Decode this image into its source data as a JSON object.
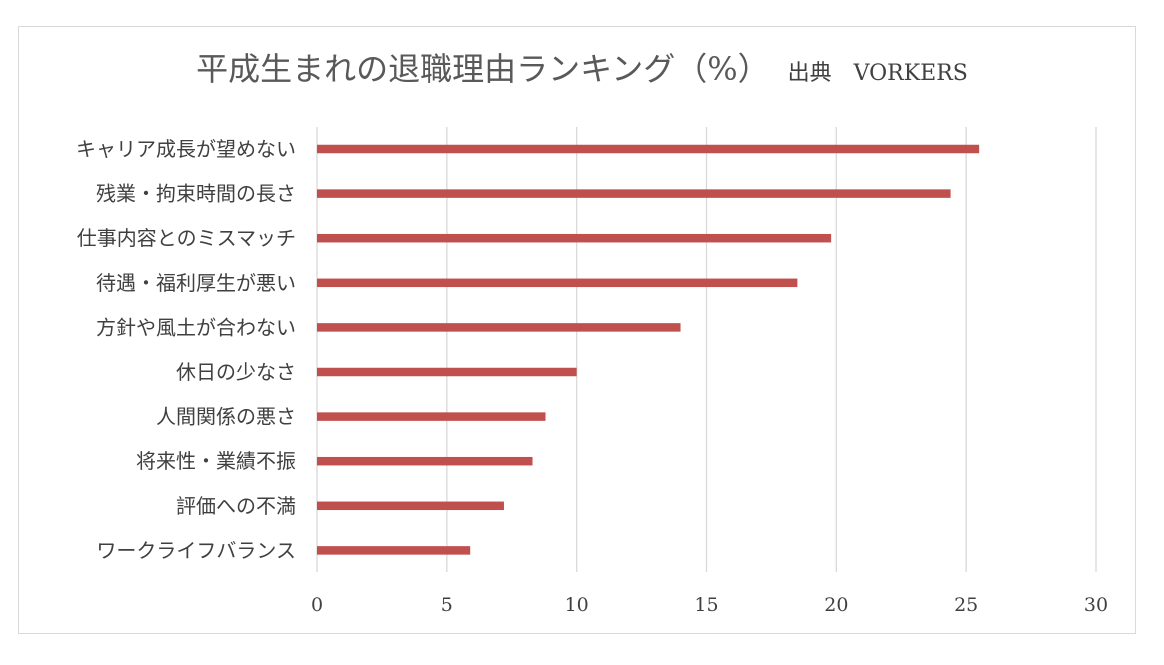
{
  "chart_data": {
    "type": "bar",
    "orientation": "horizontal",
    "title": "平成生まれの退職理由ランキング（%）",
    "subtitle": "出典　VORKERS",
    "categories": [
      "キャリア成長が望めない",
      "残業・拘束時間の長さ",
      "仕事内容とのミスマッチ",
      "待遇・福利厚生が悪い",
      "方針や風土が合わない",
      "休日の少なさ",
      "人間関係の悪さ",
      "将来性・業績不振",
      "評価への不満",
      "ワークライフバランス"
    ],
    "values": [
      25.5,
      24.4,
      19.8,
      18.5,
      14.0,
      10.0,
      8.8,
      8.3,
      7.2,
      5.9
    ],
    "xlim": [
      0,
      30
    ],
    "xticks": [
      "0",
      "5",
      "10",
      "15",
      "20",
      "25",
      "30"
    ],
    "xlabel": "",
    "ylabel": "",
    "grid": "vertical",
    "legend": "none",
    "bar_color": "#c0504d",
    "grid_color": "#d9d9d9"
  }
}
